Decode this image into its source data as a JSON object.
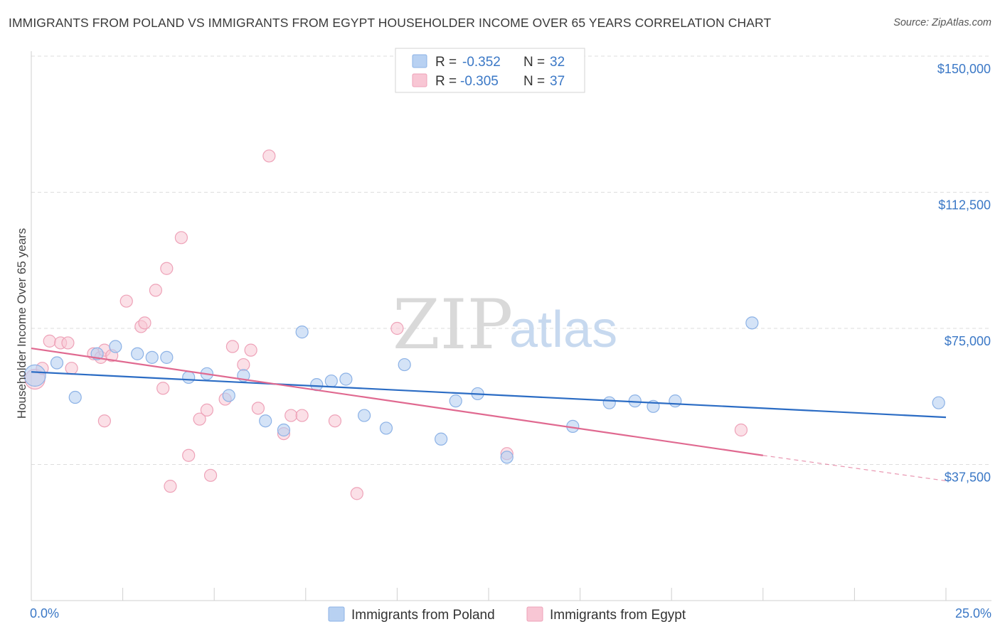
{
  "title": "IMMIGRANTS FROM POLAND VS IMMIGRANTS FROM EGYPT HOUSEHOLDER INCOME OVER 65 YEARS CORRELATION CHART",
  "source": "Source: ZipAtlas.com",
  "watermark": {
    "zip": "ZIP",
    "atlas": "atlas"
  },
  "legend": {
    "poland": {
      "r_label": "R =",
      "r_value": "-0.352",
      "n_label": "N =",
      "n_value": "32"
    },
    "egypt": {
      "r_label": "R =",
      "r_value": "-0.305",
      "n_label": "N =",
      "n_value": "37"
    }
  },
  "colors": {
    "poland_fill": "#b8d1f2",
    "poland_stroke": "#8cb2e6",
    "poland_line": "#2b6cc4",
    "egypt_fill": "#f8c6d4",
    "egypt_stroke": "#eea2b8",
    "egypt_line": "#e06990",
    "tick_text": "#3b78c6",
    "grid": "#dddddd"
  },
  "chart_data": {
    "type": "scatter",
    "title": "IMMIGRANTS FROM POLAND VS IMMIGRANTS FROM EGYPT HOUSEHOLDER INCOME OVER 65 YEARS CORRELATION CHART",
    "xlabel": "",
    "ylabel": "Householder Income Over 65 years",
    "xlim": [
      0,
      25
    ],
    "ylim": [
      0,
      155000
    ],
    "x_tick_labels": [
      "0.0%",
      "25.0%"
    ],
    "y_ticks": [
      37500,
      75000,
      112500,
      150000
    ],
    "y_tick_labels": [
      "$37,500",
      "$75,000",
      "$112,500",
      "$150,000"
    ],
    "legend_position": "bottom-center",
    "series": [
      {
        "name": "Immigrants from Poland",
        "r": -0.352,
        "n": 32,
        "trend": {
          "x0": 0.0,
          "y0": 63000,
          "x1": 25.0,
          "y1": 50500
        },
        "points": [
          [
            0.1,
            62000
          ],
          [
            0.7,
            65500
          ],
          [
            1.2,
            56000
          ],
          [
            1.8,
            68000
          ],
          [
            2.3,
            70000
          ],
          [
            2.9,
            68000
          ],
          [
            3.3,
            67000
          ],
          [
            3.7,
            67000
          ],
          [
            4.3,
            61500
          ],
          [
            4.8,
            62500
          ],
          [
            5.4,
            56500
          ],
          [
            5.8,
            62000
          ],
          [
            6.4,
            49500
          ],
          [
            6.9,
            47000
          ],
          [
            7.4,
            74000
          ],
          [
            7.8,
            59500
          ],
          [
            8.2,
            60500
          ],
          [
            8.6,
            61000
          ],
          [
            9.1,
            51000
          ],
          [
            9.7,
            47500
          ],
          [
            10.2,
            65000
          ],
          [
            11.2,
            44500
          ],
          [
            11.6,
            55000
          ],
          [
            12.2,
            57000
          ],
          [
            13.0,
            39500
          ],
          [
            14.8,
            48000
          ],
          [
            15.8,
            54500
          ],
          [
            16.5,
            55000
          ],
          [
            17.0,
            53500
          ],
          [
            17.6,
            55000
          ],
          [
            19.7,
            76500
          ],
          [
            24.8,
            54500
          ]
        ]
      },
      {
        "name": "Immigrants from Egypt",
        "r": -0.305,
        "n": 37,
        "trend": {
          "x0": 0.0,
          "y0": 69500,
          "x1": 20.0,
          "y1": 40000
        },
        "trend_dashed_to": {
          "x": 25.0,
          "y": 33000
        },
        "points": [
          [
            0.1,
            61000
          ],
          [
            0.3,
            64000
          ],
          [
            0.5,
            71500
          ],
          [
            0.8,
            71000
          ],
          [
            1.0,
            71000
          ],
          [
            1.1,
            64000
          ],
          [
            1.7,
            68000
          ],
          [
            1.9,
            67000
          ],
          [
            2.0,
            69000
          ],
          [
            2.0,
            49500
          ],
          [
            2.2,
            67500
          ],
          [
            2.6,
            82500
          ],
          [
            3.0,
            75500
          ],
          [
            3.1,
            76500
          ],
          [
            3.4,
            85500
          ],
          [
            3.6,
            58500
          ],
          [
            3.7,
            91500
          ],
          [
            3.8,
            31500
          ],
          [
            4.1,
            100000
          ],
          [
            4.3,
            40000
          ],
          [
            4.6,
            50000
          ],
          [
            4.8,
            52500
          ],
          [
            4.9,
            34500
          ],
          [
            5.3,
            55500
          ],
          [
            5.5,
            70000
          ],
          [
            5.8,
            65000
          ],
          [
            6.0,
            69000
          ],
          [
            6.2,
            53000
          ],
          [
            6.5,
            122500
          ],
          [
            6.9,
            46000
          ],
          [
            7.1,
            51000
          ],
          [
            7.4,
            51000
          ],
          [
            8.3,
            49500
          ],
          [
            8.9,
            29500
          ],
          [
            10.0,
            75000
          ],
          [
            13.0,
            40500
          ],
          [
            19.4,
            47000
          ]
        ]
      }
    ]
  }
}
